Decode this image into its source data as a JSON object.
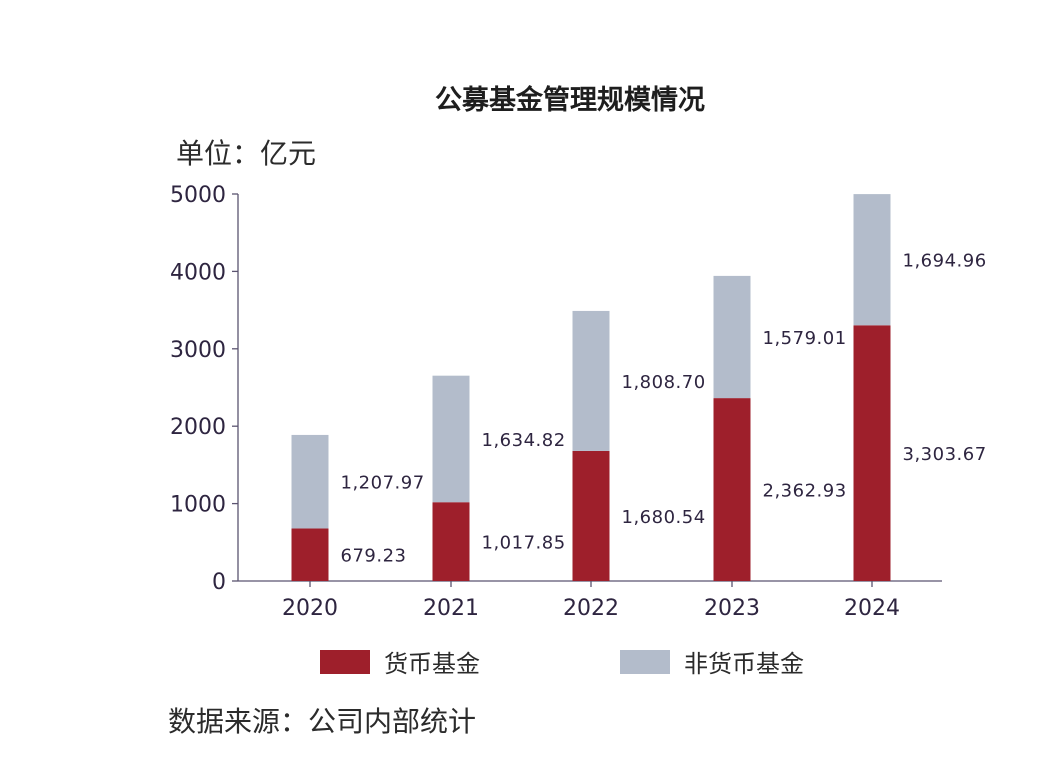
{
  "title": "公募基金管理规模情况",
  "unit_label": "单位：亿元",
  "source_label": "数据来源：公司内部统计",
  "colors": {
    "money_fund": "#9e1f2b",
    "non_money_fund": "#b3bccb",
    "text": "#2e2540",
    "axis": "#5b5470"
  },
  "chart_data": {
    "type": "bar",
    "stacked": true,
    "title": "公募基金管理规模情况",
    "ylabel": "单位：亿元",
    "categories": [
      "2020",
      "2021",
      "2022",
      "2023",
      "2024"
    ],
    "ylim": [
      0,
      5000
    ],
    "yticks": [
      "0",
      "1000",
      "2000",
      "3000",
      "4000",
      "5000"
    ],
    "grid": false,
    "legend": "bottom",
    "series": [
      {
        "name": "货币基金",
        "values": [
          679.23,
          1017.85,
          1680.54,
          2362.93,
          3303.67
        ],
        "labels": [
          "679.23",
          "1,017.85",
          "1,680.54",
          "2,362.93",
          "3,303.67"
        ]
      },
      {
        "name": "非货币基金",
        "values": [
          1207.97,
          1634.82,
          1808.7,
          1579.01,
          1694.96
        ],
        "labels": [
          "1,207.97",
          "1,634.82",
          "1,808.70",
          "1,579.01",
          "1,694.96"
        ]
      }
    ]
  }
}
